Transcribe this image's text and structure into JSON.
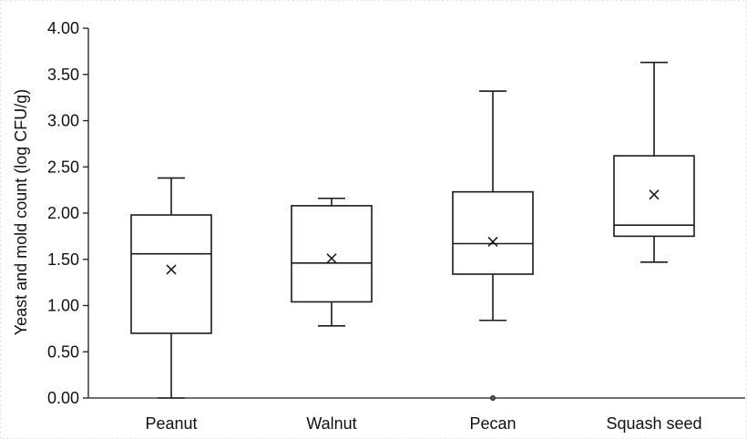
{
  "chart_data": {
    "type": "box",
    "ylabel": "Yeast and mold count (log CFU/g)",
    "xlabel": "",
    "ylim": [
      0,
      4
    ],
    "yticks": [
      "0.00",
      "0.50",
      "1.00",
      "1.50",
      "2.00",
      "2.50",
      "3.00",
      "3.50",
      "4.00"
    ],
    "ytick_values": [
      0,
      0.5,
      1,
      1.5,
      2,
      2.5,
      3,
      3.5,
      4
    ],
    "categories": [
      "Peanut",
      "Walnut",
      "Pecan",
      "Squash seed"
    ],
    "boxes": [
      {
        "category": "Peanut",
        "min": 0.0,
        "q1": 0.7,
        "median": 1.56,
        "q3": 1.98,
        "max": 2.38,
        "mean": 1.39,
        "outliers": []
      },
      {
        "category": "Walnut",
        "min": 0.78,
        "q1": 1.04,
        "median": 1.46,
        "q3": 2.08,
        "max": 2.16,
        "mean": 1.51,
        "outliers": []
      },
      {
        "category": "Pecan",
        "min": 0.84,
        "q1": 1.34,
        "median": 1.67,
        "q3": 2.23,
        "max": 3.32,
        "mean": 1.69,
        "outliers": [
          0.0
        ]
      },
      {
        "category": "Squash seed",
        "min": 1.47,
        "q1": 1.75,
        "median": 1.87,
        "q3": 2.62,
        "max": 3.63,
        "mean": 2.2,
        "outliers": []
      }
    ],
    "grid": false,
    "legend": "none",
    "colors": {
      "stroke": "#1a1a1a",
      "outlier": "#555555",
      "frame": "#dddddd"
    }
  }
}
